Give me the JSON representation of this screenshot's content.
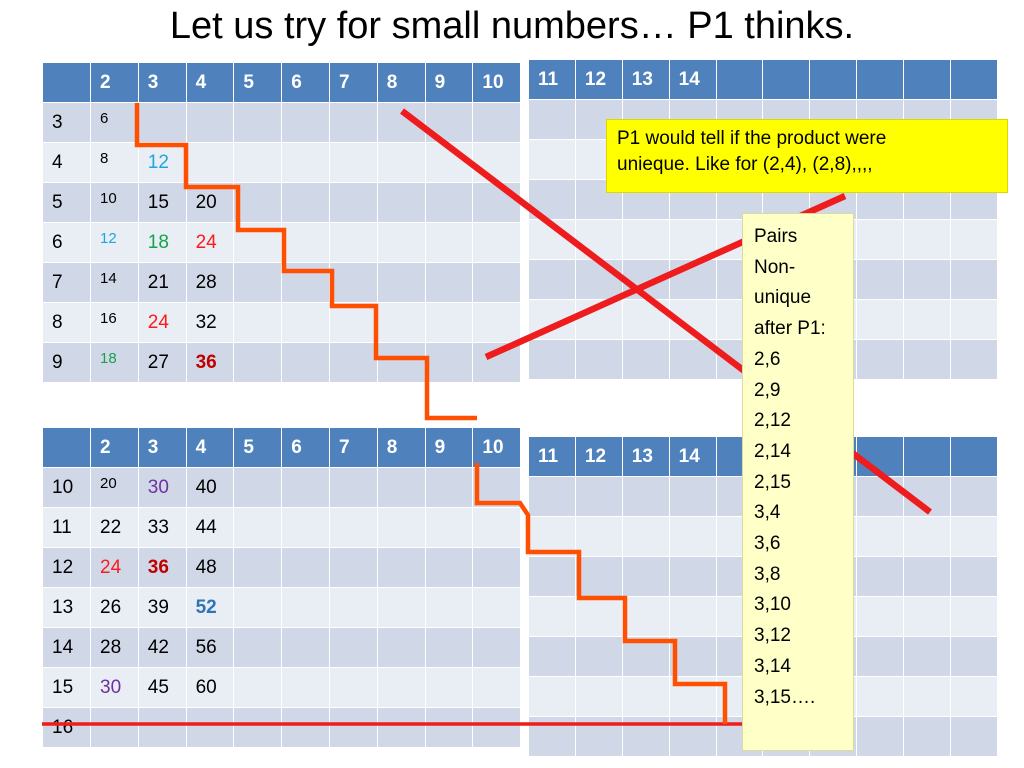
{
  "title": "Let us try for small numbers… P1 thinks.",
  "colors": {
    "header_bg": "#4f81bd",
    "row_dark": "#d0d8e8",
    "row_light": "#e9edf4",
    "staircase": "#ff4f00",
    "cross_lines": "#ee1c1c",
    "note_bg": "#ffff00",
    "pairs_bg": "#ffffc8",
    "blue": "#1fa6e0",
    "green": "#17a34a",
    "red": "#ff1a1a",
    "dark_red": "#c00000",
    "purple": "#7030a0",
    "bold_blue": "#2e75b6"
  },
  "table_top_left": {
    "header": [
      "",
      "2",
      "3",
      "4",
      "5",
      "6",
      "7",
      "8",
      "9",
      "10"
    ],
    "rows": [
      {
        "label": "3",
        "cells": [
          {
            "v": "6",
            "style": "small"
          },
          {
            "v": ""
          },
          {
            "v": ""
          },
          {
            "v": ""
          },
          {
            "v": ""
          },
          {
            "v": ""
          },
          {
            "v": ""
          },
          {
            "v": ""
          },
          {
            "v": ""
          }
        ]
      },
      {
        "label": "4",
        "cells": [
          {
            "v": "8",
            "style": "small"
          },
          {
            "v": "12",
            "color": "blue"
          },
          {
            "v": ""
          },
          {
            "v": ""
          },
          {
            "v": ""
          },
          {
            "v": ""
          },
          {
            "v": ""
          },
          {
            "v": ""
          },
          {
            "v": ""
          }
        ]
      },
      {
        "label": "5",
        "cells": [
          {
            "v": "10",
            "style": "small"
          },
          {
            "v": "15"
          },
          {
            "v": "20"
          },
          {
            "v": ""
          },
          {
            "v": ""
          },
          {
            "v": ""
          },
          {
            "v": ""
          },
          {
            "v": ""
          },
          {
            "v": ""
          }
        ]
      },
      {
        "label": "6",
        "cells": [
          {
            "v": "12",
            "style": "small",
            "color": "blue"
          },
          {
            "v": "18",
            "color": "green"
          },
          {
            "v": "24",
            "color": "red"
          },
          {
            "v": ""
          },
          {
            "v": ""
          },
          {
            "v": ""
          },
          {
            "v": ""
          },
          {
            "v": ""
          },
          {
            "v": ""
          }
        ]
      },
      {
        "label": "7",
        "cells": [
          {
            "v": "14",
            "style": "small"
          },
          {
            "v": "21"
          },
          {
            "v": "28"
          },
          {
            "v": ""
          },
          {
            "v": ""
          },
          {
            "v": ""
          },
          {
            "v": ""
          },
          {
            "v": ""
          },
          {
            "v": ""
          }
        ]
      },
      {
        "label": "8",
        "cells": [
          {
            "v": "16",
            "style": "small"
          },
          {
            "v": "24",
            "color": "red"
          },
          {
            "v": "32"
          },
          {
            "v": ""
          },
          {
            "v": ""
          },
          {
            "v": ""
          },
          {
            "v": ""
          },
          {
            "v": ""
          },
          {
            "v": ""
          }
        ]
      },
      {
        "label": "9",
        "cells": [
          {
            "v": "18",
            "style": "small",
            "color": "green"
          },
          {
            "v": "27"
          },
          {
            "v": "36",
            "color": "dark_red",
            "bold": true
          },
          {
            "v": ""
          },
          {
            "v": ""
          },
          {
            "v": ""
          },
          {
            "v": ""
          },
          {
            "v": ""
          },
          {
            "v": ""
          }
        ]
      }
    ]
  },
  "table_top_right": {
    "header": [
      "11",
      "12",
      "13",
      "14",
      "",
      "",
      "",
      "",
      "",
      ""
    ],
    "rows": [
      {
        "cells": [
          "",
          "",
          "",
          "",
          "",
          "",
          "",
          "",
          "",
          ""
        ]
      },
      {
        "cells": [
          "",
          "",
          "",
          "",
          "",
          "",
          "",
          "",
          "",
          ""
        ]
      },
      {
        "cells": [
          "",
          "",
          "",
          "",
          "",
          "",
          "",
          "",
          "",
          ""
        ]
      },
      {
        "cells": [
          "",
          "",
          "",
          "",
          "",
          "",
          "",
          "",
          "",
          ""
        ]
      },
      {
        "cells": [
          "",
          "",
          "",
          "",
          "",
          "",
          "",
          "",
          "",
          ""
        ]
      },
      {
        "cells": [
          "",
          "",
          "",
          "",
          "",
          "",
          "",
          "",
          "",
          ""
        ]
      },
      {
        "cells": [
          "",
          "",
          "",
          "",
          "",
          "",
          "",
          "",
          "",
          ""
        ]
      }
    ]
  },
  "table_bottom_left": {
    "header": [
      "",
      "2",
      "3",
      "4",
      "5",
      "6",
      "7",
      "8",
      "9",
      "10"
    ],
    "rows": [
      {
        "label": "10",
        "cells": [
          {
            "v": "20",
            "style": "small"
          },
          {
            "v": "30",
            "color": "purple"
          },
          {
            "v": "40"
          },
          {
            "v": ""
          },
          {
            "v": ""
          },
          {
            "v": ""
          },
          {
            "v": ""
          },
          {
            "v": ""
          },
          {
            "v": ""
          }
        ]
      },
      {
        "label": "11",
        "cells": [
          {
            "v": "22"
          },
          {
            "v": "33"
          },
          {
            "v": "44"
          },
          {
            "v": ""
          },
          {
            "v": ""
          },
          {
            "v": ""
          },
          {
            "v": ""
          },
          {
            "v": ""
          },
          {
            "v": ""
          }
        ]
      },
      {
        "label": "12",
        "cells": [
          {
            "v": "24",
            "color": "red"
          },
          {
            "v": "36",
            "color": "dark_red",
            "bold": true
          },
          {
            "v": "48"
          },
          {
            "v": ""
          },
          {
            "v": ""
          },
          {
            "v": ""
          },
          {
            "v": ""
          },
          {
            "v": ""
          },
          {
            "v": ""
          }
        ]
      },
      {
        "label": "13",
        "cells": [
          {
            "v": "26"
          },
          {
            "v": "39"
          },
          {
            "v": "52",
            "color": "bold_blue",
            "bold": true
          },
          {
            "v": ""
          },
          {
            "v": ""
          },
          {
            "v": ""
          },
          {
            "v": ""
          },
          {
            "v": ""
          },
          {
            "v": ""
          }
        ]
      },
      {
        "label": "14",
        "cells": [
          {
            "v": "28"
          },
          {
            "v": "42"
          },
          {
            "v": "56"
          },
          {
            "v": ""
          },
          {
            "v": ""
          },
          {
            "v": ""
          },
          {
            "v": ""
          },
          {
            "v": ""
          },
          {
            "v": ""
          }
        ]
      },
      {
        "label": "15",
        "cells": [
          {
            "v": "30",
            "color": "purple"
          },
          {
            "v": "45"
          },
          {
            "v": "60"
          },
          {
            "v": ""
          },
          {
            "v": ""
          },
          {
            "v": ""
          },
          {
            "v": ""
          },
          {
            "v": ""
          },
          {
            "v": ""
          }
        ]
      },
      {
        "label": "16",
        "cells": [
          {
            "v": ""
          },
          {
            "v": ""
          },
          {
            "v": ""
          },
          {
            "v": ""
          },
          {
            "v": ""
          },
          {
            "v": ""
          },
          {
            "v": ""
          },
          {
            "v": ""
          },
          {
            "v": ""
          }
        ]
      }
    ]
  },
  "table_bottom_right": {
    "header": [
      "11",
      "12",
      "13",
      "14",
      "",
      "",
      "",
      "",
      "",
      ""
    ],
    "rows": [
      {
        "cells": [
          "",
          "",
          "",
          "",
          "",
          "",
          "",
          "",
          "",
          ""
        ]
      },
      {
        "cells": [
          "",
          "",
          "",
          "",
          "",
          "",
          "",
          "",
          "",
          ""
        ]
      },
      {
        "cells": [
          "",
          "",
          "",
          "",
          "",
          "",
          "",
          "",
          "",
          ""
        ]
      },
      {
        "cells": [
          "",
          "",
          "",
          "",
          "",
          "",
          "",
          "",
          "",
          ""
        ]
      },
      {
        "cells": [
          "",
          "",
          "",
          "",
          "",
          "",
          "",
          "",
          "",
          ""
        ]
      },
      {
        "cells": [
          "",
          "",
          "",
          "",
          "",
          "",
          "",
          "",
          "",
          ""
        ]
      },
      {
        "cells": [
          "",
          "",
          "",
          "",
          "",
          "",
          "",
          "",
          "",
          ""
        ]
      }
    ]
  },
  "note": {
    "line1": "P1 would tell if the product were",
    "line2": "unieque. Like for (2,4), (2,8),,,,"
  },
  "pairs_box": {
    "lines": [
      "Pairs",
      "Non-",
      "unique",
      "after P1:",
      "2,6",
      "2,9",
      "2,12",
      "2,14",
      "2,15",
      "3,4",
      "3,6",
      "3,8",
      "3,10",
      "3,12",
      "3,14",
      "3,15…."
    ]
  }
}
